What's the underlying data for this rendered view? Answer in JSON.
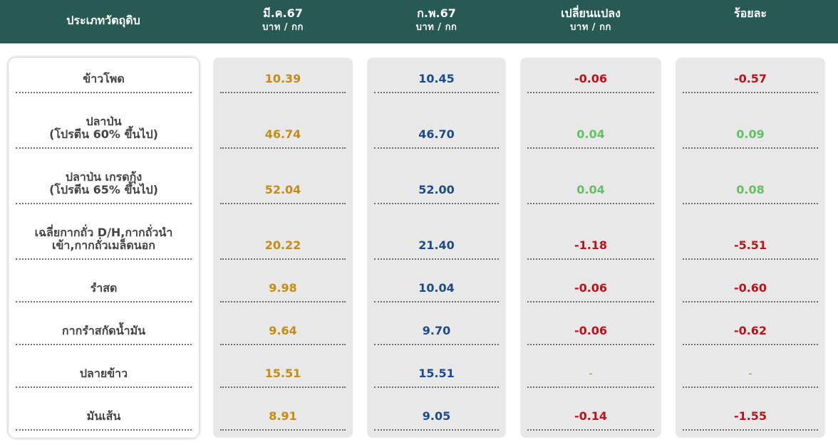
{
  "header": {
    "type_label": "ประเภทวัตถุดิบ",
    "mar_label": "มี.ค.67",
    "mar_unit": "บาท / กก",
    "feb_label": "ก.พ.67",
    "feb_unit": "บาท / กก",
    "change_label": "เปลี่ยนแปลง",
    "change_unit": "บาท / กก",
    "percent_label": "ร้อยละ"
  },
  "colors": {
    "header_bg": "#265a52",
    "mar_value": "#c68b12",
    "feb_value": "#1b4a8f",
    "negative": "#c0101a",
    "positive": "#62c162"
  },
  "rows": [
    {
      "name": "ข้าวโพด",
      "mar": "10.39",
      "feb": "10.45",
      "change": "-0.06",
      "percent": "-0.57",
      "trend": "neg"
    },
    {
      "name": "ปลาป่น\n(โปรตีน 60% ขึ้นไป)",
      "mar": "46.74",
      "feb": "46.70",
      "change": "0.04",
      "percent": "0.09",
      "trend": "pos"
    },
    {
      "name": "ปลาป่น เกรดกุ้ง\n(โปรตีน 65% ขึ้นไป)",
      "mar": "52.04",
      "feb": "52.00",
      "change": "0.04",
      "percent": "0.08",
      "trend": "pos"
    },
    {
      "name": "เฉลี่ยกากถั่ว D/H,กากถั่วนำ\nเข้า,กากถั่วเมล็ดนอก",
      "mar": "20.22",
      "feb": "21.40",
      "change": "-1.18",
      "percent": "-5.51",
      "trend": "neg"
    },
    {
      "name": "รำสด",
      "mar": "9.98",
      "feb": "10.04",
      "change": "-0.06",
      "percent": "-0.60",
      "trend": "neg"
    },
    {
      "name": "กากรำสกัดน้ำมัน",
      "mar": "9.64",
      "feb": "9.70",
      "change": "-0.06",
      "percent": "-0.62",
      "trend": "neg"
    },
    {
      "name": "ปลายข้าว",
      "mar": "15.51",
      "feb": "15.51",
      "change": "-",
      "percent": "-",
      "trend": "neu"
    },
    {
      "name": "มันเส้น",
      "mar": "8.91",
      "feb": "9.05",
      "change": "-0.14",
      "percent": "-1.55",
      "trend": "neg"
    }
  ]
}
